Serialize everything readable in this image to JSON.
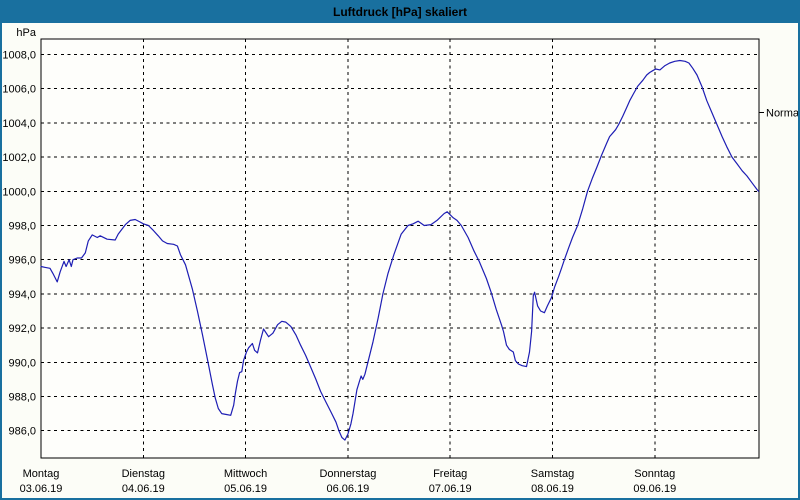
{
  "window": {
    "title": "Luftdruck [hPa] skaliert"
  },
  "colors": {
    "titlebar": "#19709f",
    "window_border": "#19709f",
    "background": "#fcfdf7",
    "plot_background": "#fefefb",
    "grid": "#000000",
    "line": "#1e1eb4",
    "text": "#000000",
    "title_text": "#ffffff"
  },
  "chart_data": {
    "type": "line",
    "title": "Luftdruck [hPa] skaliert",
    "ylabel": "hPa",
    "grid": "dashed",
    "legend_position": "none",
    "y_axis": {
      "unit_label": "hPa",
      "tick_values": [
        1008,
        1006,
        1004,
        1002,
        1000,
        998,
        996,
        994,
        992,
        990,
        988,
        986
      ],
      "tick_step": 2,
      "decimal_style": "comma",
      "ylim_displayed": [
        986,
        1008
      ]
    },
    "x_axis": {
      "hours_per_day": 24,
      "days": [
        {
          "name": "Montag",
          "date": "03.06.19"
        },
        {
          "name": "Dienstag",
          "date": "04.06.19"
        },
        {
          "name": "Mittwoch",
          "date": "05.06.19"
        },
        {
          "name": "Donnerstag",
          "date": "06.06.19"
        },
        {
          "name": "Freitag",
          "date": "07.06.19"
        },
        {
          "name": "Samstag",
          "date": "08.06.19"
        },
        {
          "name": "Sonntag",
          "date": "09.06.19"
        }
      ]
    },
    "normal_marker": {
      "label": "Normal",
      "value_hpa": 1004.6
    },
    "series": [
      {
        "name": "Luftdruck",
        "unit": "hPa",
        "points_hours_hpa": [
          [
            0,
            995.6
          ],
          [
            1,
            995.55
          ],
          [
            2.1,
            995.5
          ],
          [
            2.8,
            995.2
          ],
          [
            3.8,
            994.7
          ],
          [
            4.5,
            995.3
          ],
          [
            5.4,
            995.9
          ],
          [
            5.9,
            995.6
          ],
          [
            6.6,
            996
          ],
          [
            7.1,
            995.6
          ],
          [
            7.5,
            996
          ],
          [
            8.5,
            996.1
          ],
          [
            9.5,
            996.1
          ],
          [
            10.4,
            996.4
          ],
          [
            11.1,
            997.1
          ],
          [
            12,
            997.45
          ],
          [
            13.2,
            997.3
          ],
          [
            13.9,
            997.4
          ],
          [
            15.5,
            997.2
          ],
          [
            17.4,
            997.15
          ],
          [
            18.1,
            997.5
          ],
          [
            19.8,
            998.05
          ],
          [
            20.9,
            998.3
          ],
          [
            22.1,
            998.35
          ],
          [
            23.3,
            998.2
          ],
          [
            24,
            998.1
          ],
          [
            25.2,
            998
          ],
          [
            26.4,
            997.7
          ],
          [
            27.5,
            997.4
          ],
          [
            28.5,
            997.1
          ],
          [
            29.6,
            996.95
          ],
          [
            31.1,
            996.9
          ],
          [
            32,
            996.8
          ],
          [
            32.7,
            996.3
          ],
          [
            33.9,
            995.7
          ],
          [
            35.5,
            994.3
          ],
          [
            36.7,
            993
          ],
          [
            37.9,
            991.6
          ],
          [
            39.1,
            990.1
          ],
          [
            40.2,
            988.7
          ],
          [
            40.9,
            987.9
          ],
          [
            41.6,
            987.3
          ],
          [
            42.4,
            987
          ],
          [
            43.5,
            986.95
          ],
          [
            44.5,
            986.9
          ],
          [
            45.2,
            987.5
          ],
          [
            45.6,
            988.2
          ],
          [
            46.1,
            988.9
          ],
          [
            46.6,
            989.4
          ],
          [
            47.1,
            989.45
          ],
          [
            47.5,
            990.1
          ],
          [
            48.2,
            990.6
          ],
          [
            48.7,
            990.85
          ],
          [
            49.6,
            991.1
          ],
          [
            50.1,
            990.7
          ],
          [
            50.8,
            990.55
          ],
          [
            51.5,
            991.3
          ],
          [
            52.2,
            991.95
          ],
          [
            53.4,
            991.5
          ],
          [
            54.4,
            991.7
          ],
          [
            55.5,
            992.2
          ],
          [
            56.5,
            992.4
          ],
          [
            57.4,
            992.35
          ],
          [
            58.6,
            992.1
          ],
          [
            59.8,
            991.6
          ],
          [
            60.9,
            991
          ],
          [
            62.1,
            990.4
          ],
          [
            63.3,
            989.7
          ],
          [
            64.5,
            989
          ],
          [
            65.6,
            988.3
          ],
          [
            66.8,
            987.7
          ],
          [
            68,
            987.1
          ],
          [
            69.2,
            986.5
          ],
          [
            69.9,
            986
          ],
          [
            70.6,
            985.6
          ],
          [
            71.3,
            985.45
          ],
          [
            72,
            985.8
          ],
          [
            72.7,
            986.4
          ],
          [
            73.2,
            987
          ],
          [
            73.6,
            987.6
          ],
          [
            74.1,
            988.4
          ],
          [
            74.6,
            988.8
          ],
          [
            75.1,
            989.2
          ],
          [
            75.5,
            989
          ],
          [
            76,
            989.3
          ],
          [
            76.7,
            990
          ],
          [
            77.9,
            991.2
          ],
          [
            79.1,
            992.6
          ],
          [
            80.2,
            994
          ],
          [
            81.4,
            995.2
          ],
          [
            82.8,
            996.3
          ],
          [
            84.5,
            997.5
          ],
          [
            86.1,
            998
          ],
          [
            87.3,
            998.1
          ],
          [
            88.5,
            998.25
          ],
          [
            89.9,
            998
          ],
          [
            91.5,
            998.05
          ],
          [
            92.9,
            998.3
          ],
          [
            94.6,
            998.7
          ],
          [
            95.3,
            998.8
          ],
          [
            96.7,
            998.45
          ],
          [
            97.6,
            998.3
          ],
          [
            98.6,
            998
          ],
          [
            100.2,
            997.3
          ],
          [
            101.6,
            996.5
          ],
          [
            102.8,
            995.9
          ],
          [
            104.5,
            994.9
          ],
          [
            105.6,
            994.1
          ],
          [
            106.8,
            993.1
          ],
          [
            108,
            992.2
          ],
          [
            108.5,
            991.8
          ],
          [
            109.2,
            991
          ],
          [
            109.9,
            990.75
          ],
          [
            110.8,
            990.6
          ],
          [
            111.3,
            990.1
          ],
          [
            112,
            989.9
          ],
          [
            112.9,
            989.8
          ],
          [
            113.9,
            989.75
          ],
          [
            114.6,
            990.6
          ],
          [
            115.1,
            991.8
          ],
          [
            115.5,
            993.9
          ],
          [
            115.8,
            994.1
          ],
          [
            116.5,
            993.3
          ],
          [
            117.2,
            993
          ],
          [
            118.1,
            992.9
          ],
          [
            118.8,
            993.3
          ],
          [
            119.8,
            993.8
          ],
          [
            120.5,
            994.4
          ],
          [
            121.4,
            995
          ],
          [
            122.1,
            995.5
          ],
          [
            122.8,
            996
          ],
          [
            123.8,
            996.7
          ],
          [
            124.7,
            997.3
          ],
          [
            125.9,
            998
          ],
          [
            127.1,
            999
          ],
          [
            128.2,
            1000
          ],
          [
            129.4,
            1000.8
          ],
          [
            130.4,
            1001.4
          ],
          [
            131.5,
            1002.1
          ],
          [
            132.7,
            1002.8
          ],
          [
            133.4,
            1003.2
          ],
          [
            134.1,
            1003.4
          ],
          [
            134.8,
            1003.6
          ],
          [
            135.5,
            1003.9
          ],
          [
            136.5,
            1004.4
          ],
          [
            137.4,
            1004.9
          ],
          [
            138.1,
            1005.3
          ],
          [
            139.1,
            1005.75
          ],
          [
            140,
            1006.15
          ],
          [
            141.2,
            1006.5
          ],
          [
            142.1,
            1006.8
          ],
          [
            142.8,
            1006.95
          ],
          [
            143.5,
            1007.05
          ],
          [
            144.2,
            1007.15
          ],
          [
            145.2,
            1007.1
          ],
          [
            146.4,
            1007.35
          ],
          [
            147.5,
            1007.5
          ],
          [
            148.7,
            1007.6
          ],
          [
            149.9,
            1007.65
          ],
          [
            151.1,
            1007.6
          ],
          [
            152,
            1007.5
          ],
          [
            152.9,
            1007.2
          ],
          [
            153.9,
            1006.8
          ],
          [
            155.1,
            1006.1
          ],
          [
            156.2,
            1005.3
          ],
          [
            157.4,
            1004.6
          ],
          [
            158.6,
            1003.9
          ],
          [
            159.8,
            1003.2
          ],
          [
            160.9,
            1002.6
          ],
          [
            162.1,
            1002
          ],
          [
            163.3,
            1001.6
          ],
          [
            164.5,
            1001.2
          ],
          [
            165.6,
            1000.9
          ],
          [
            166.8,
            1000.5
          ],
          [
            168,
            1000.1
          ],
          [
            168.4,
            1000
          ]
        ]
      }
    ]
  }
}
